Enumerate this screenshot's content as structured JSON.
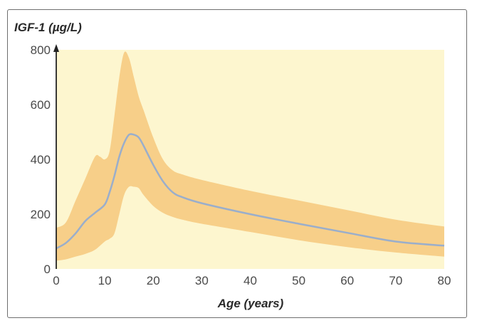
{
  "chart_data": {
    "type": "area",
    "ylabel": "IGF-1 (µg/L)",
    "xlabel": "Age (years)",
    "xlim": [
      0,
      80
    ],
    "ylim": [
      0,
      800
    ],
    "x_ticks": [
      "0",
      "10",
      "20",
      "30",
      "40",
      "50",
      "60",
      "70",
      "80"
    ],
    "y_ticks": [
      "0",
      "200",
      "400",
      "600",
      "800"
    ],
    "grid": false,
    "colors": {
      "plot_background": "#fdf6cf",
      "band": "#f7cf89",
      "median_line": "#9aaecb",
      "axis": "#222222"
    },
    "series": [
      {
        "role": "upper",
        "x": [
          0,
          2,
          4,
          6,
          8,
          9,
          10,
          11,
          12,
          13,
          14,
          15,
          16,
          17,
          18,
          20,
          22,
          24,
          26,
          30,
          40,
          50,
          60,
          70,
          80
        ],
        "y": [
          150,
          170,
          250,
          330,
          410,
          410,
          400,
          430,
          560,
          700,
          790,
          770,
          700,
          630,
          580,
          480,
          400,
          360,
          345,
          325,
          285,
          250,
          215,
          180,
          155
        ]
      },
      {
        "role": "median",
        "x": [
          0,
          2,
          4,
          6,
          8,
          10,
          11,
          12,
          13,
          14,
          15,
          16,
          17,
          18,
          20,
          22,
          24,
          26,
          30,
          40,
          50,
          60,
          70,
          80
        ],
        "y": [
          75,
          95,
          130,
          175,
          205,
          235,
          280,
          340,
          410,
          460,
          490,
          490,
          480,
          450,
          380,
          320,
          280,
          262,
          240,
          200,
          165,
          132,
          100,
          85
        ]
      },
      {
        "role": "lower",
        "x": [
          0,
          2,
          4,
          6,
          8,
          10,
          11,
          12,
          13,
          14,
          15,
          16,
          17,
          18,
          20,
          22,
          24,
          26,
          30,
          40,
          50,
          60,
          70,
          80
        ],
        "y": [
          30,
          35,
          45,
          55,
          70,
          100,
          110,
          130,
          200,
          270,
          300,
          300,
          295,
          270,
          230,
          205,
          190,
          180,
          165,
          135,
          105,
          80,
          60,
          45
        ]
      }
    ]
  }
}
